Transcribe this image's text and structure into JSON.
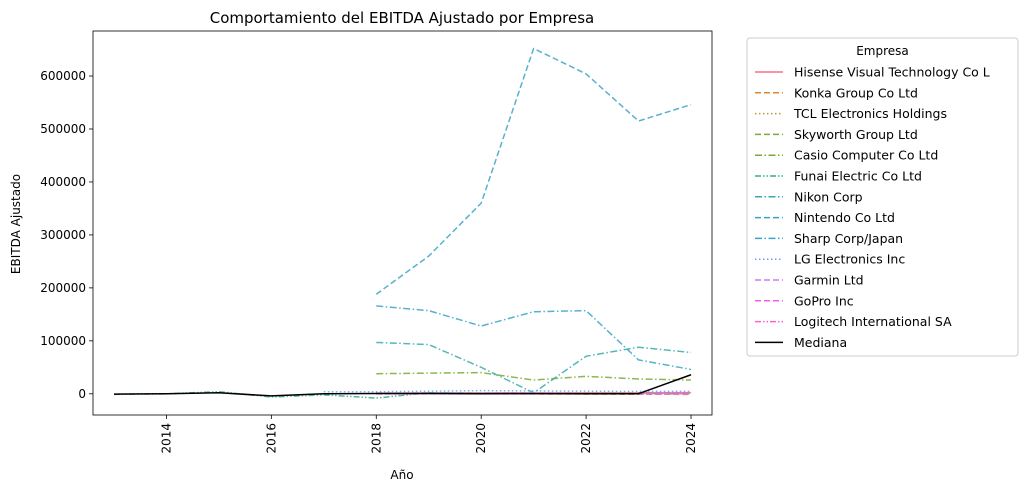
{
  "chart_data": {
    "type": "line",
    "title": "Comportamiento del EBITDA Ajustado por Empresa",
    "xlabel": "Año",
    "ylabel": "EBITDA Ajustado",
    "xlim": [
      2012.6,
      2024.4
    ],
    "ylim": [
      -40000,
      685000
    ],
    "x_ticks": [
      2014,
      2016,
      2018,
      2020,
      2022,
      2024
    ],
    "y_ticks": [
      0,
      100000,
      200000,
      300000,
      400000,
      500000,
      600000
    ],
    "grid": false,
    "legend": {
      "title": "Empresa",
      "placement": "outside-right"
    },
    "series": [
      {
        "name": "Hisense Visual Technology Co L",
        "color": "#f77189",
        "dash": "solid",
        "points": [
          [
            2018,
            1000
          ],
          [
            2019,
            1500
          ],
          [
            2020,
            1800
          ],
          [
            2021,
            1600
          ],
          [
            2022,
            1900
          ],
          [
            2023,
            2000
          ],
          [
            2024,
            2200
          ]
        ]
      },
      {
        "name": "Konka Group Co Ltd",
        "color": "#dc8932",
        "dash": "dashed",
        "points": [
          [
            2018,
            300
          ],
          [
            2019,
            200
          ],
          [
            2020,
            100
          ],
          [
            2021,
            -200
          ],
          [
            2022,
            -500
          ],
          [
            2023,
            -800
          ],
          [
            2024,
            -1000
          ]
        ]
      },
      {
        "name": "TCL Electronics Holdings",
        "color": "#ae9d31",
        "dash": "dotted",
        "points": [
          [
            2018,
            500
          ],
          [
            2019,
            700
          ],
          [
            2020,
            900
          ],
          [
            2021,
            800
          ],
          [
            2022,
            700
          ],
          [
            2023,
            1000
          ],
          [
            2024,
            1200
          ]
        ]
      },
      {
        "name": "Skyworth Group Ltd",
        "color": "#77ab31",
        "dash": "dashed",
        "points": [
          [
            2018,
            1200
          ],
          [
            2019,
            1500
          ],
          [
            2020,
            1800
          ],
          [
            2021,
            1300
          ],
          [
            2022,
            1600
          ],
          [
            2023,
            1900
          ],
          [
            2024,
            2100
          ]
        ]
      },
      {
        "name": "Casio Computer Co Ltd",
        "color": "#77ab31",
        "dash": "dashdot",
        "points": [
          [
            2018,
            38000
          ],
          [
            2019,
            39000
          ],
          [
            2020,
            40000
          ],
          [
            2021,
            26000
          ],
          [
            2022,
            33000
          ],
          [
            2023,
            28000
          ],
          [
            2024,
            26000
          ]
        ]
      },
      {
        "name": "Funai Electric Co Ltd",
        "color": "#36ad8a",
        "dash": "dashdotdot",
        "points": [
          [
            2013,
            -1000
          ],
          [
            2014,
            0
          ],
          [
            2015,
            4000
          ],
          [
            2016,
            -6000
          ],
          [
            2017,
            -2000
          ],
          [
            2018,
            -8000
          ],
          [
            2019,
            2000
          ],
          [
            2020,
            1000
          ],
          [
            2021,
            500
          ],
          [
            2022,
            300
          ],
          [
            2023,
            200
          ],
          [
            2024,
            200
          ]
        ]
      },
      {
        "name": "Nikon Corp",
        "color": "#38aaac",
        "dash": "dashdot",
        "points": [
          [
            2018,
            97000
          ],
          [
            2019,
            93000
          ],
          [
            2020,
            50000
          ],
          [
            2021,
            2000
          ],
          [
            2022,
            71000
          ],
          [
            2023,
            88000
          ],
          [
            2024,
            78000
          ]
        ]
      },
      {
        "name": "Nintendo Co Ltd",
        "color": "#3ba3c6",
        "dash": "dashed",
        "points": [
          [
            2018,
            188000
          ],
          [
            2019,
            260000
          ],
          [
            2020,
            360000
          ],
          [
            2021,
            652000
          ],
          [
            2022,
            604000
          ],
          [
            2023,
            515000
          ],
          [
            2024,
            546000
          ]
        ]
      },
      {
        "name": "Sharp Corp/Japan",
        "color": "#3ba3c6",
        "dash": "dashdot",
        "points": [
          [
            2018,
            166000
          ],
          [
            2019,
            157000
          ],
          [
            2020,
            128000
          ],
          [
            2021,
            155000
          ],
          [
            2022,
            157000
          ],
          [
            2023,
            64000
          ],
          [
            2024,
            46000
          ]
        ]
      },
      {
        "name": "LG Electronics Inc",
        "color": "#6e9bf4",
        "dash": "dotted",
        "points": [
          [
            2017,
            4000
          ],
          [
            2018,
            4000
          ],
          [
            2019,
            5000
          ],
          [
            2020,
            6000
          ],
          [
            2021,
            5500
          ],
          [
            2022,
            5000
          ],
          [
            2023,
            4500
          ],
          [
            2024,
            4500
          ]
        ]
      },
      {
        "name": "Garmin Ltd",
        "color": "#cc7af4",
        "dash": "dashed",
        "points": [
          [
            2018,
            900
          ],
          [
            2019,
            1000
          ],
          [
            2020,
            1200
          ],
          [
            2021,
            1400
          ],
          [
            2022,
            1100
          ],
          [
            2023,
            1200
          ],
          [
            2024,
            1600
          ]
        ]
      },
      {
        "name": "GoPro Inc",
        "color": "#f45deb",
        "dash": "dashed",
        "points": [
          [
            2018,
            -200
          ],
          [
            2019,
            100
          ],
          [
            2020,
            200
          ],
          [
            2021,
            300
          ],
          [
            2022,
            200
          ],
          [
            2023,
            -300
          ],
          [
            2024,
            -100
          ]
        ]
      },
      {
        "name": "Logitech International SA",
        "color": "#f565cc",
        "dash": "dashdotdot",
        "points": [
          [
            2018,
            500
          ],
          [
            2019,
            600
          ],
          [
            2020,
            1200
          ],
          [
            2021,
            1300
          ],
          [
            2022,
            900
          ],
          [
            2023,
            800
          ],
          [
            2024,
            900
          ]
        ]
      },
      {
        "name": "Mediana",
        "color": "#000000",
        "dash": "solid",
        "width": 1.5,
        "points": [
          [
            2013,
            -500
          ],
          [
            2014,
            200
          ],
          [
            2015,
            2000
          ],
          [
            2016,
            -4000
          ],
          [
            2017,
            0
          ],
          [
            2018,
            500
          ],
          [
            2019,
            700
          ],
          [
            2020,
            200
          ],
          [
            2021,
            300
          ],
          [
            2022,
            200
          ],
          [
            2023,
            200
          ],
          [
            2024,
            36000
          ]
        ]
      }
    ]
  }
}
